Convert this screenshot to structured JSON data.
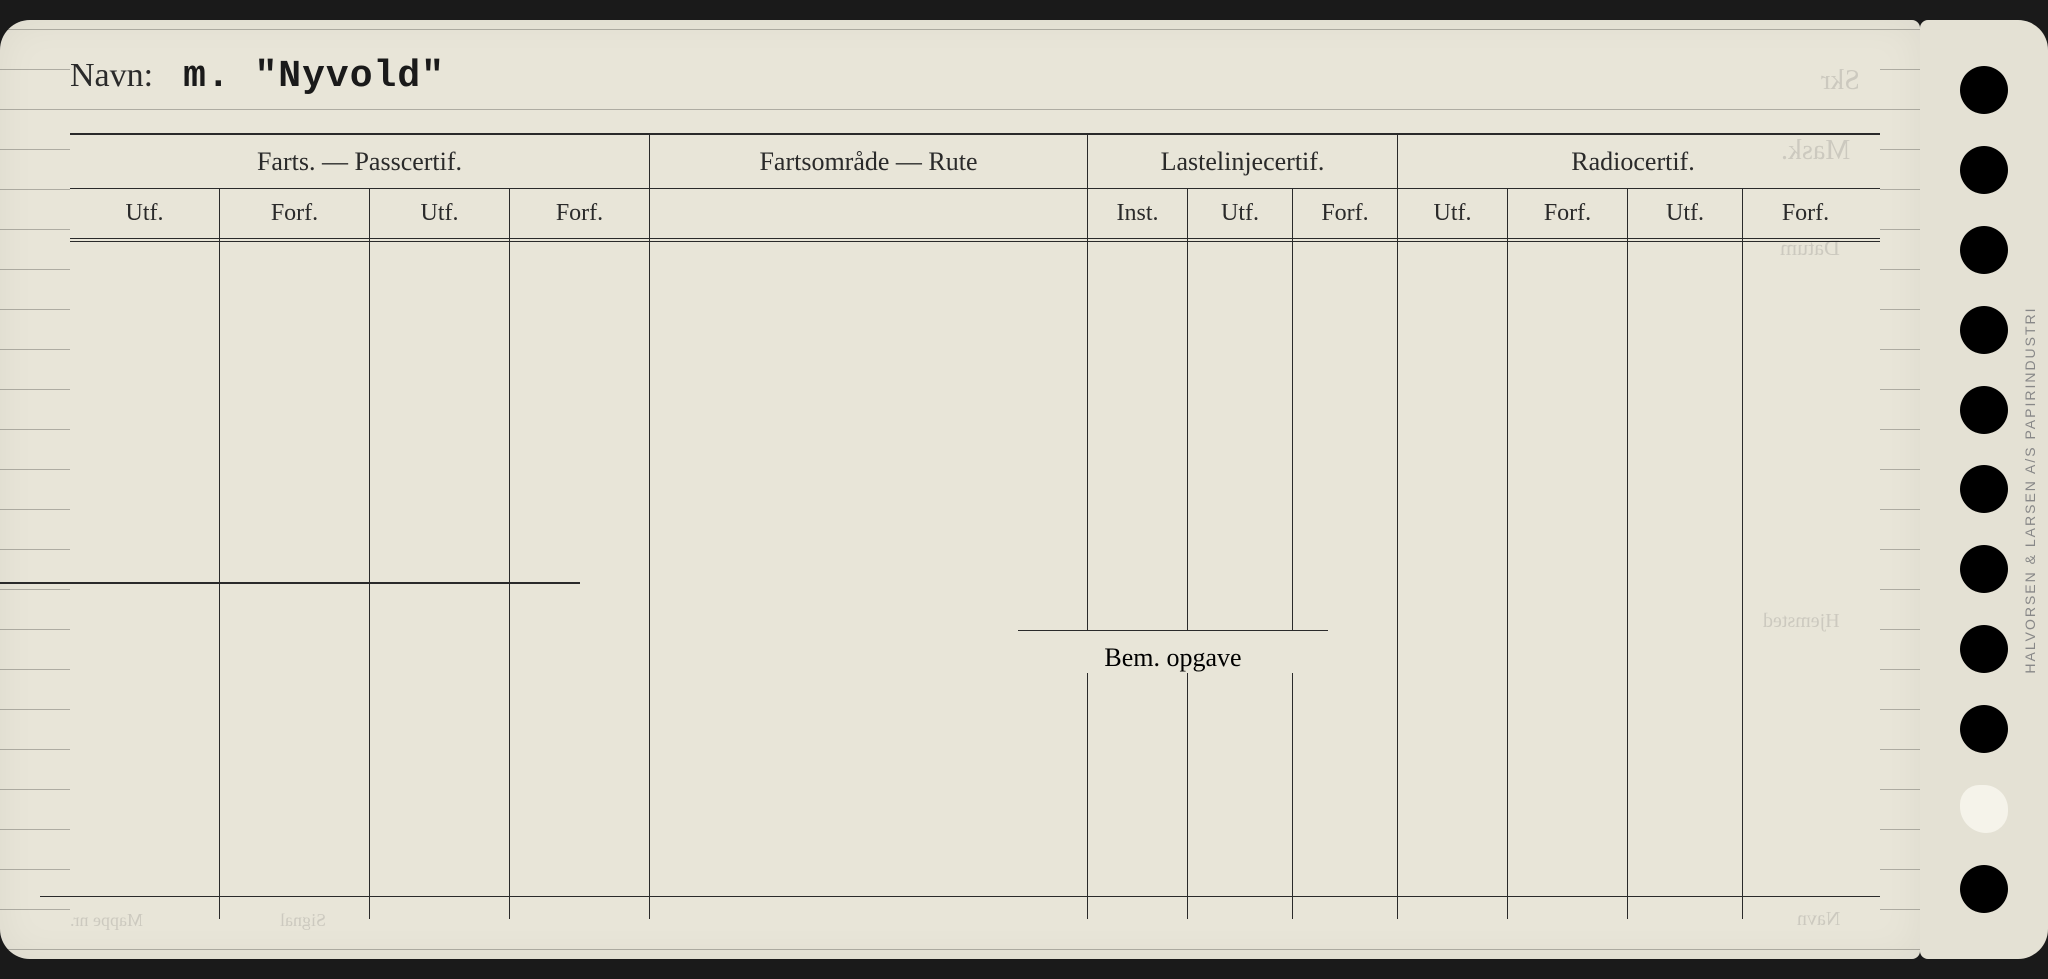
{
  "header": {
    "navn_label": "Navn:",
    "navn_value": "m. \"Nyvold\""
  },
  "groups": {
    "farts": "Farts. — Passcertif.",
    "rute": "Fartsområde — Rute",
    "laste": "Lastelinjecertif.",
    "radio": "Radiocertif."
  },
  "subheaders": {
    "utf": "Utf.",
    "forf": "Forf.",
    "inst": "Inst."
  },
  "labels": {
    "bem_opgave": "Bem. opgave"
  },
  "faded_bleed": {
    "skr": "Skr",
    "mask": "Mask.",
    "datum": "Datum",
    "hjemsted": "Hjemsted",
    "navn": "Navn",
    "mappe": "Mappe nr.",
    "signal": "Signal"
  },
  "side_print": "HALVORSEN & LARSEN A/S PAPIRINDUSTRI",
  "colors": {
    "paper": "#e8e5d8",
    "ink": "#2a2a2a",
    "background": "#1a1a1a"
  }
}
